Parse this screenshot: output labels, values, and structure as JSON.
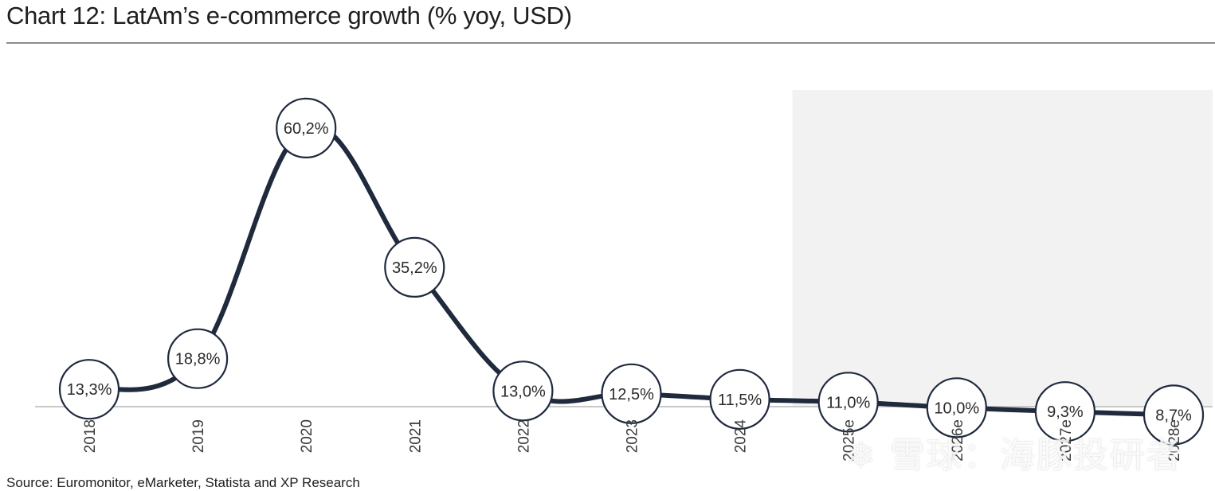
{
  "title": "Chart 12: LatAm’s e-commerce growth (% yoy, USD)",
  "source": "Source: Euromonitor, eMarketer, Statista and XP Research",
  "watermark": "雪球：海豚投研者",
  "colors": {
    "line": "#1f2a3d",
    "forecast_shade": "#f2f2f2",
    "marker_fill": "#ffffff",
    "axis": "#c8c8c8"
  },
  "chart_data": {
    "type": "line",
    "categories": [
      "2018",
      "2019",
      "2020",
      "2021",
      "2022",
      "2023",
      "2024",
      "2025e",
      "2026e",
      "2027e",
      "2028e"
    ],
    "series": [
      {
        "values": [
          13.3,
          18.8,
          60.2,
          35.2,
          13.0,
          12.5,
          11.5,
          11.0,
          10.0,
          9.3,
          8.7
        ]
      }
    ],
    "data_labels": [
      "13,3%",
      "18,8%",
      "60,2%",
      "35,2%",
      "13,0%",
      "12,5%",
      "11,5%",
      "11,0%",
      "10,0%",
      "9,3%",
      "8,7%"
    ],
    "forecast_shaded_from": "2025e",
    "xlabel": "",
    "ylabel": "",
    "grid": false,
    "legend": "none"
  }
}
